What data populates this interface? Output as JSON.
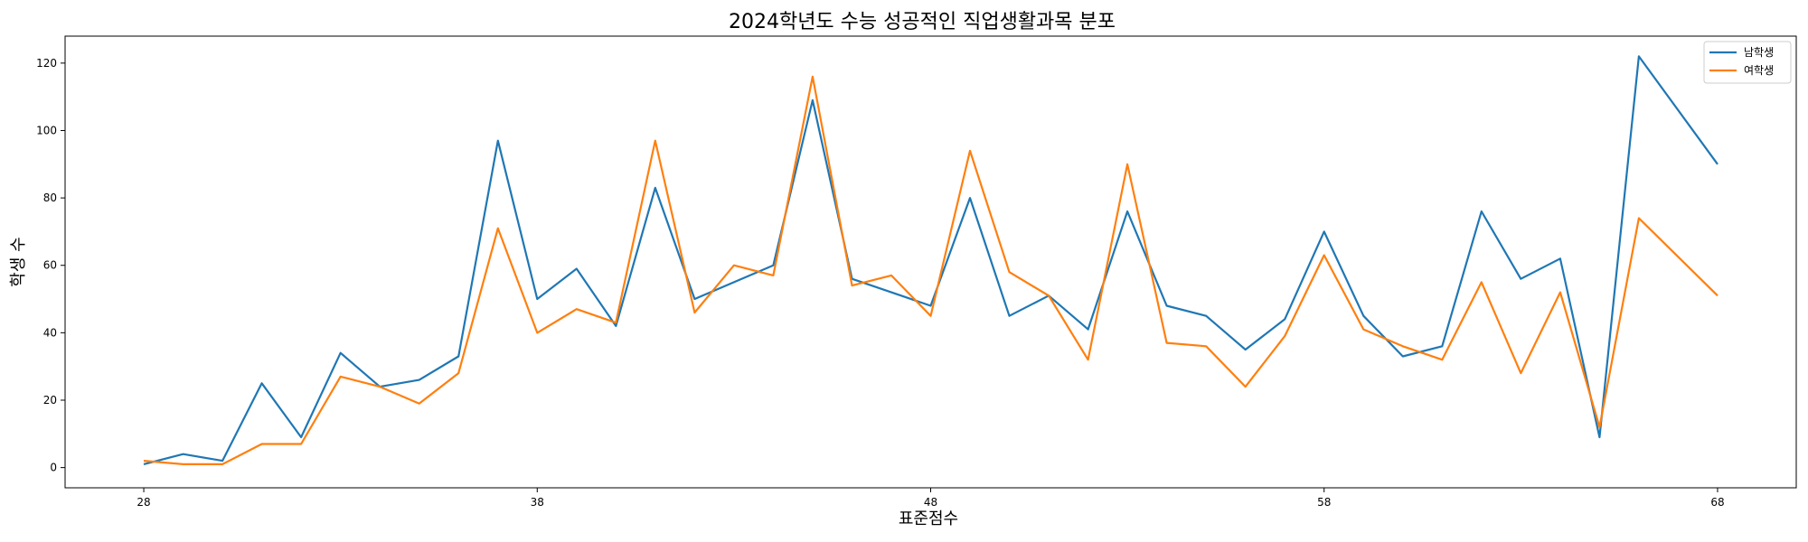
{
  "chart_data": {
    "type": "line",
    "title": "2024학년도 수능 성공적인 직업생활과목 분포",
    "xlabel": "표준점수",
    "ylabel": "학생 수",
    "xlim": [
      26,
      70
    ],
    "ylim": [
      -6,
      128
    ],
    "xticks": [
      28,
      38,
      48,
      58,
      68
    ],
    "yticks": [
      0,
      20,
      40,
      60,
      80,
      100,
      120
    ],
    "grid": false,
    "legend_position": "top-right",
    "x": [
      28,
      29,
      30,
      31,
      32,
      33,
      34,
      35,
      36,
      37,
      38,
      39,
      40,
      41,
      42,
      43,
      44,
      45,
      46,
      47,
      48,
      49,
      50,
      51,
      52,
      53,
      54,
      55,
      56,
      57,
      58,
      59,
      60,
      61,
      62,
      63,
      64,
      65,
      66,
      68
    ],
    "series": [
      {
        "name": "남학생",
        "color": "#1f77b4",
        "values": [
          1,
          4,
          2,
          25,
          9,
          34,
          24,
          26,
          33,
          97,
          50,
          59,
          42,
          83,
          50,
          55,
          60,
          109,
          56,
          52,
          48,
          80,
          45,
          51,
          41,
          76,
          48,
          45,
          35,
          44,
          70,
          45,
          33,
          36,
          76,
          56,
          62,
          9,
          122,
          90
        ]
      },
      {
        "name": "여학생",
        "color": "#ff7f0e",
        "values": [
          2,
          1,
          1,
          7,
          7,
          27,
          24,
          19,
          28,
          71,
          40,
          47,
          43,
          97,
          46,
          60,
          57,
          116,
          54,
          57,
          45,
          94,
          58,
          51,
          32,
          90,
          37,
          36,
          24,
          39,
          63,
          41,
          36,
          32,
          55,
          28,
          52,
          12,
          74,
          51
        ]
      }
    ]
  }
}
